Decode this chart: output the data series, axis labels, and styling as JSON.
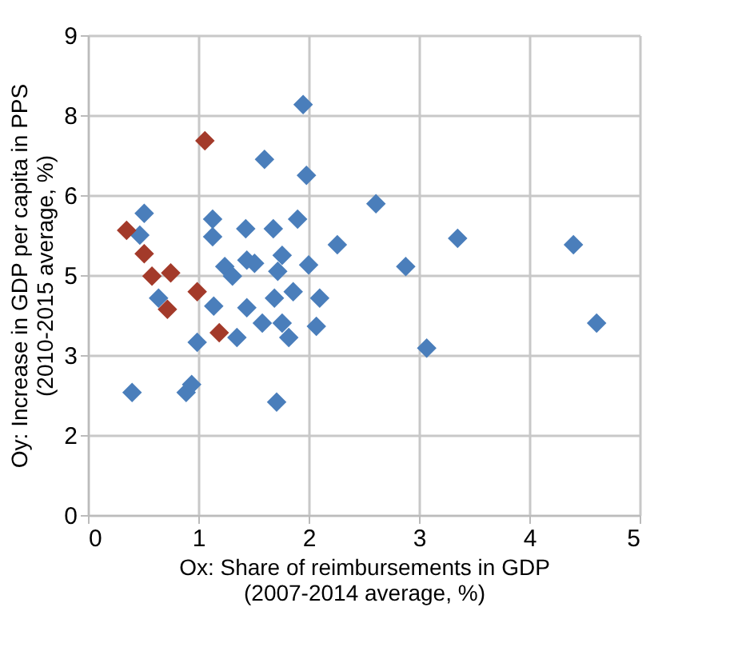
{
  "chart_data": {
    "type": "scatter",
    "xlabel": "Ox: Share of reimbursements in GDP\n(2007-2014 average, %)",
    "ylabel": "Oy: Increase in GDP per capita in PPS\n(2010-2015 average, %)",
    "xlim": [
      0,
      5
    ],
    "xticks": [
      0,
      1,
      2,
      3,
      4,
      5
    ],
    "ylim": [
      0,
      9
    ],
    "yticks": [
      0,
      {
        "value": 1.5,
        "label": "2"
      },
      3,
      {
        "value": 4.5,
        "label": "5"
      },
      6,
      {
        "value": 7.5,
        "label": "8"
      },
      9
    ],
    "grid": true,
    "legend": false,
    "marker": "diamond",
    "series": [
      {
        "color": "#4a7ebb",
        "x": [
          1.95,
          1.6,
          1.98,
          0.51,
          1.13,
          0.47,
          1.13,
          1.43,
          1.68,
          1.9,
          2.26,
          1.24,
          1.31,
          1.44,
          1.51,
          1.76,
          1.72,
          2.0,
          0.64,
          1.14,
          1.44,
          1.69,
          1.86,
          2.1,
          1.58,
          1.76,
          1.82,
          2.07,
          1.35,
          0.99,
          0.4,
          0.89,
          0.94,
          1.71,
          2.61,
          2.88,
          3.35,
          4.4,
          4.61,
          3.07
        ],
        "values": [
          7.7,
          6.67,
          6.37,
          5.66,
          5.55,
          5.25,
          5.22,
          5.37,
          5.37,
          5.55,
          5.07,
          4.66,
          4.48,
          4.78,
          4.72,
          4.87,
          4.57,
          4.69,
          4.07,
          3.92,
          3.89,
          4.07,
          4.19,
          4.07,
          3.6,
          3.6,
          3.33,
          3.54,
          3.33,
          3.24,
          2.3,
          2.3,
          2.45,
          2.12,
          5.84,
          4.66,
          5.19,
          5.07,
          3.6,
          3.13
        ]
      },
      {
        "color": "#a33a2a",
        "x": [
          1.06,
          0.35,
          0.51,
          0.58,
          0.75,
          0.99,
          0.72,
          1.19
        ],
        "values": [
          7.02,
          5.34,
          4.9,
          4.48,
          4.54,
          4.19,
          3.86,
          3.42
        ]
      }
    ]
  }
}
